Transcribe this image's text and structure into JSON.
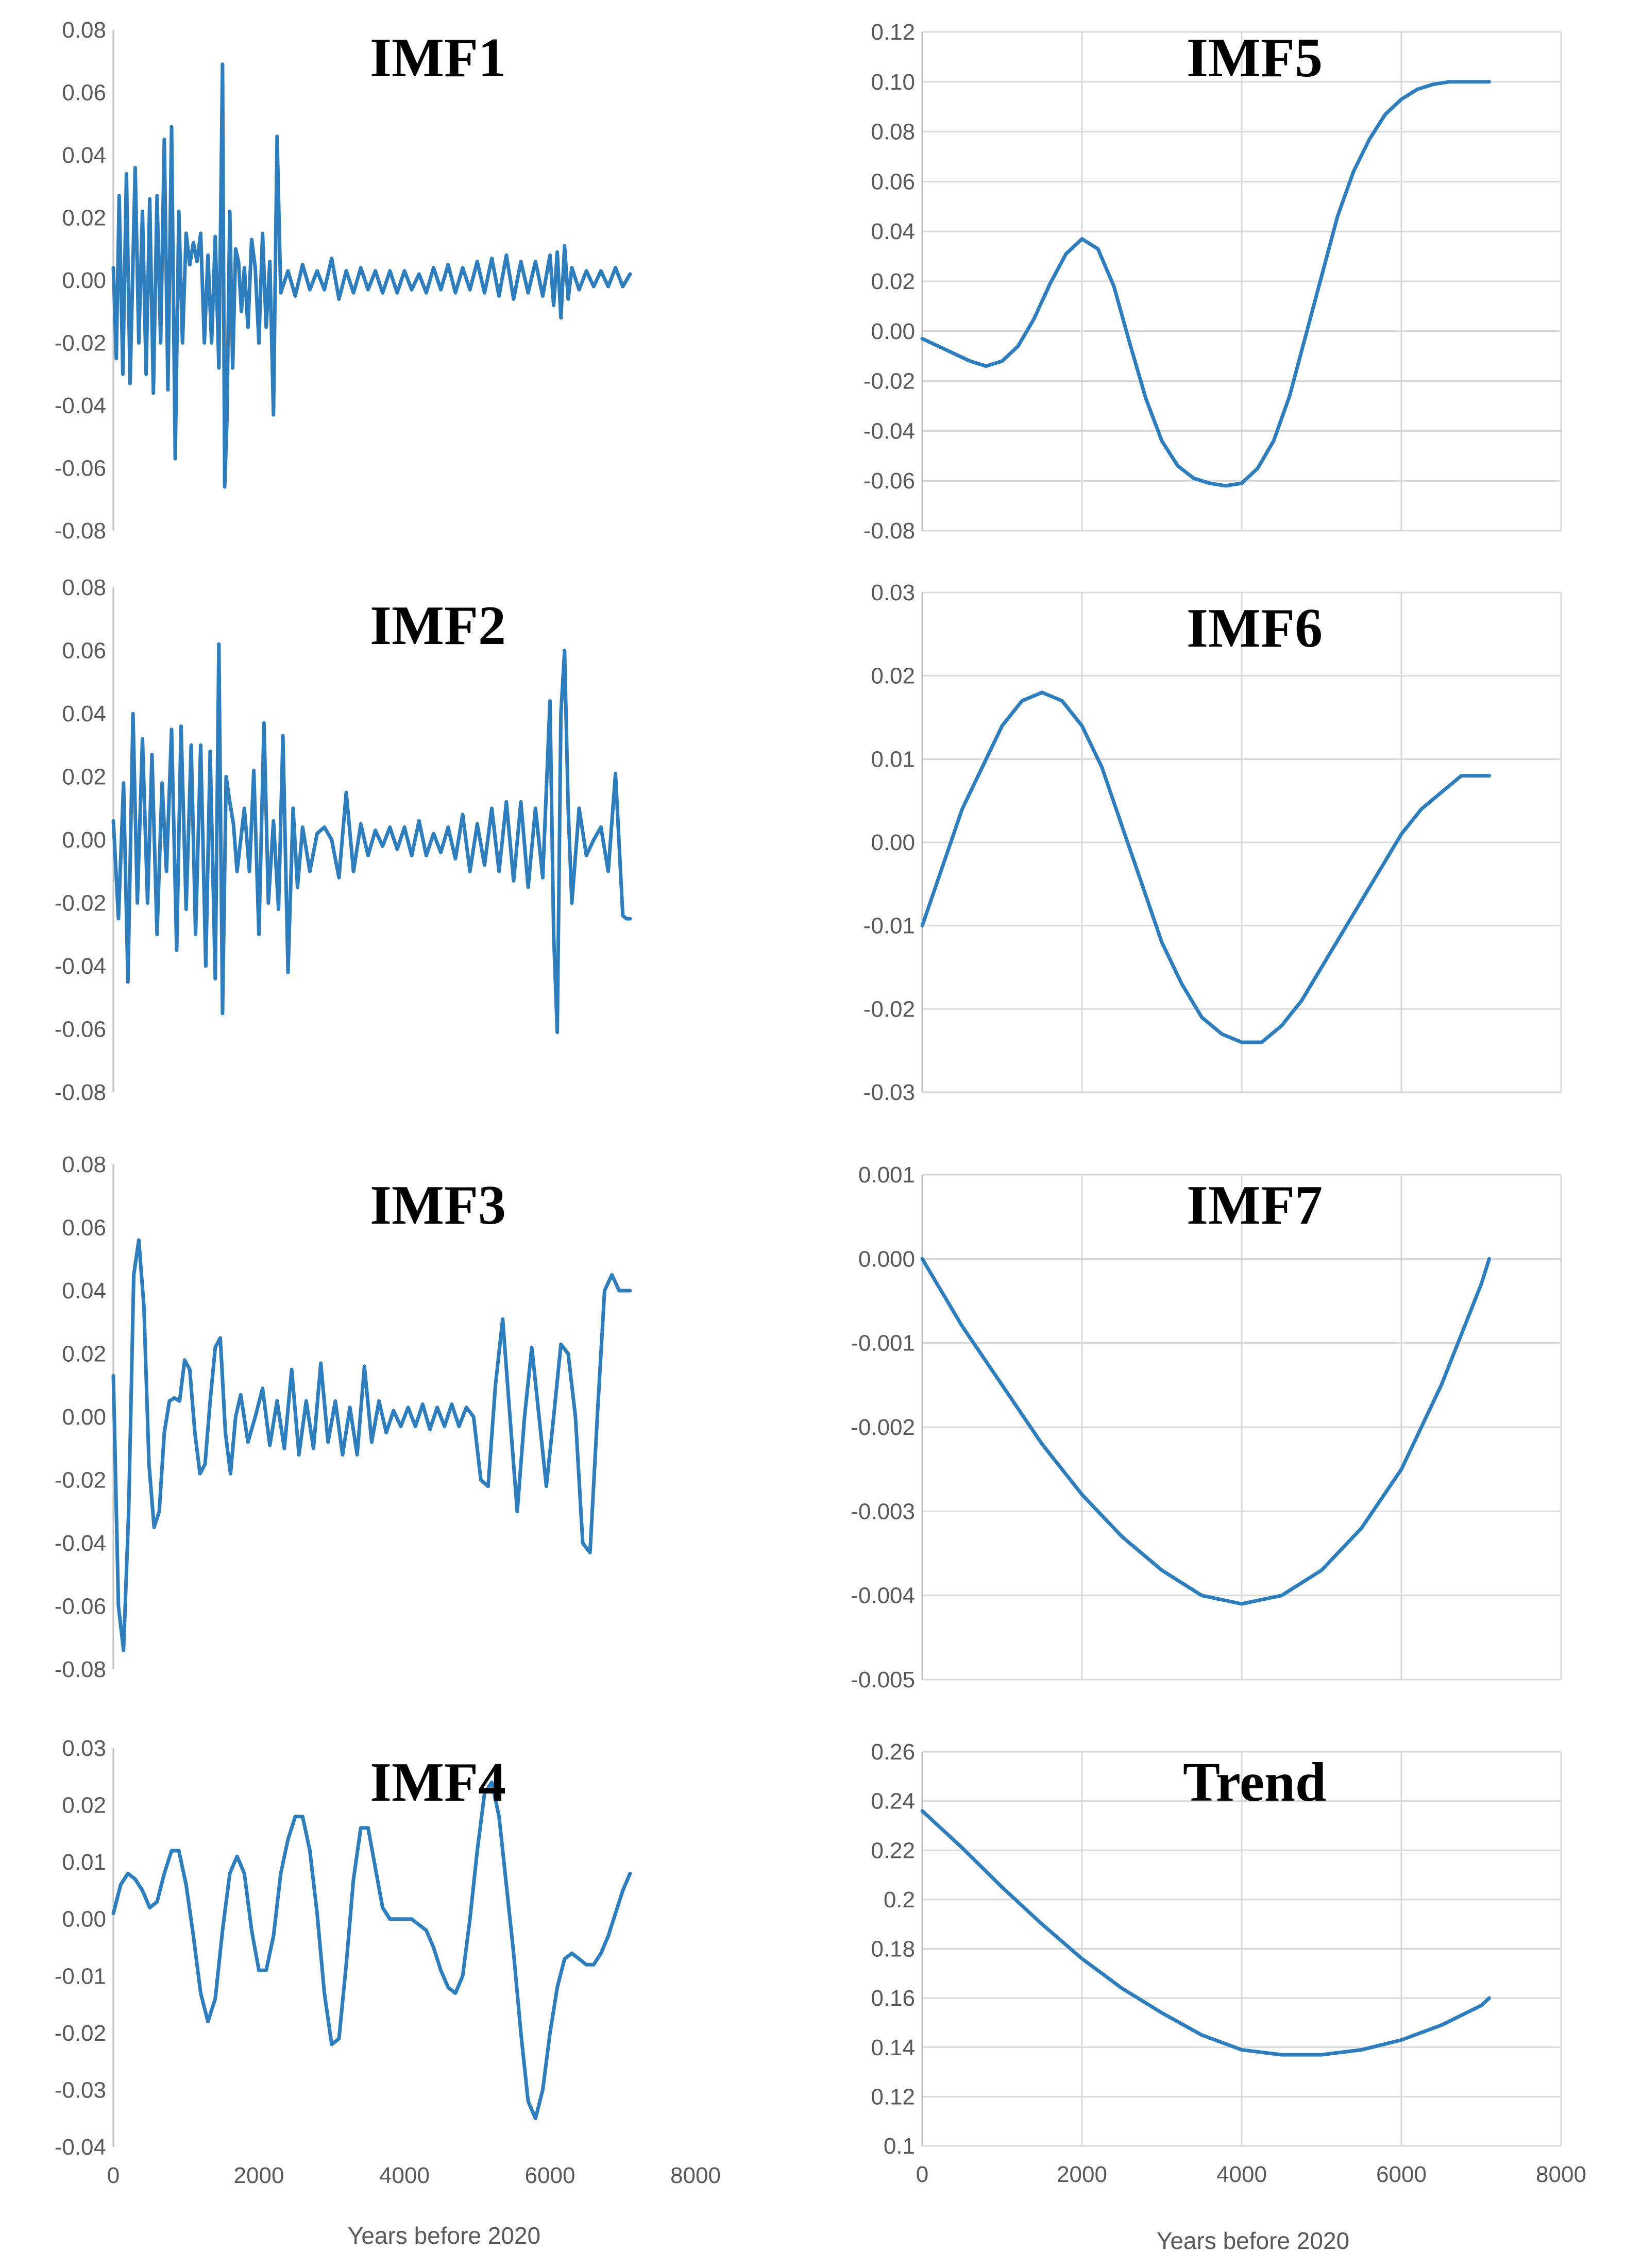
{
  "style": {
    "line_color": "#2e7ebe",
    "grid_color": "#d9d9d9"
  },
  "xlabel": "Years before 2020",
  "chart_data": [
    {
      "id": "imf1",
      "type": "line",
      "title": "IMF1",
      "ylim": [
        -0.08,
        0.08
      ],
      "yticks": [
        "0.08",
        "0.06",
        "0.04",
        "0.02",
        "0.00",
        "-0.02",
        "-0.04",
        "-0.06",
        "-0.08"
      ],
      "grid": false,
      "show_xticks": false,
      "x": [
        0,
        40,
        80,
        130,
        180,
        230,
        300,
        350,
        400,
        450,
        500,
        550,
        600,
        650,
        700,
        750,
        800,
        850,
        900,
        950,
        1000,
        1050,
        1100,
        1150,
        1200,
        1250,
        1300,
        1350,
        1400,
        1450,
        1500,
        1530,
        1560,
        1600,
        1640,
        1680,
        1720,
        1760,
        1800,
        1850,
        1900,
        1950,
        2000,
        2050,
        2100,
        2150,
        2200,
        2250,
        2300,
        2400,
        2500,
        2600,
        2700,
        2800,
        2900,
        3000,
        3100,
        3200,
        3300,
        3400,
        3500,
        3600,
        3700,
        3800,
        3900,
        4000,
        4100,
        4200,
        4300,
        4400,
        4500,
        4600,
        4700,
        4800,
        4900,
        5000,
        5100,
        5200,
        5300,
        5400,
        5500,
        5600,
        5700,
        5800,
        5900,
        6000,
        6050,
        6100,
        6150,
        6200,
        6250,
        6300,
        6400,
        6500,
        6600,
        6700,
        6800,
        6900,
        7000,
        7100
      ],
      "y": [
        0.004,
        -0.025,
        0.027,
        -0.03,
        0.034,
        -0.033,
        0.036,
        -0.02,
        0.022,
        -0.03,
        0.026,
        -0.036,
        0.027,
        -0.02,
        0.045,
        -0.035,
        0.049,
        -0.057,
        0.022,
        -0.02,
        0.015,
        0.005,
        0.012,
        0.006,
        0.015,
        -0.02,
        0.008,
        -0.02,
        0.014,
        -0.028,
        0.069,
        -0.066,
        -0.045,
        0.022,
        -0.028,
        0.01,
        0.006,
        -0.01,
        0.004,
        -0.015,
        0.013,
        0.004,
        -0.02,
        0.015,
        -0.015,
        0.006,
        -0.043,
        0.046,
        -0.004,
        0.003,
        -0.005,
        0.005,
        -0.003,
        0.003,
        -0.003,
        0.007,
        -0.006,
        0.003,
        -0.004,
        0.004,
        -0.003,
        0.003,
        -0.004,
        0.003,
        -0.004,
        0.003,
        -0.003,
        0.002,
        -0.004,
        0.004,
        -0.003,
        0.005,
        -0.004,
        0.004,
        -0.003,
        0.006,
        -0.004,
        0.007,
        -0.005,
        0.008,
        -0.006,
        0.006,
        -0.004,
        0.006,
        -0.005,
        0.008,
        -0.008,
        0.009,
        -0.012,
        0.011,
        -0.006,
        0.004,
        -0.003,
        0.003,
        -0.002,
        0.003,
        -0.002,
        0.004,
        -0.002,
        0.002
      ]
    },
    {
      "id": "imf2",
      "type": "line",
      "title": "IMF2",
      "ylim": [
        -0.08,
        0.08
      ],
      "yticks": [
        "0.08",
        "0.06",
        "0.04",
        "0.02",
        "0.00",
        "-0.02",
        "-0.04",
        "-0.06",
        "-0.08"
      ],
      "grid": false,
      "show_xticks": false,
      "x": [
        0,
        70,
        140,
        200,
        270,
        330,
        400,
        470,
        530,
        600,
        670,
        730,
        800,
        870,
        930,
        1000,
        1070,
        1130,
        1200,
        1270,
        1330,
        1400,
        1450,
        1500,
        1550,
        1600,
        1650,
        1700,
        1800,
        1870,
        1930,
        2000,
        2070,
        2130,
        2200,
        2270,
        2330,
        2400,
        2470,
        2530,
        2600,
        2700,
        2800,
        2900,
        3000,
        3100,
        3200,
        3300,
        3400,
        3500,
        3600,
        3700,
        3800,
        3900,
        4000,
        4100,
        4200,
        4300,
        4400,
        4500,
        4600,
        4700,
        4800,
        4900,
        5000,
        5100,
        5200,
        5300,
        5400,
        5500,
        5600,
        5700,
        5800,
        5900,
        6000,
        6050,
        6100,
        6150,
        6200,
        6250,
        6300,
        6400,
        6500,
        6600,
        6700,
        6800,
        6900,
        7000,
        7050,
        7100
      ],
      "y": [
        0.006,
        -0.025,
        0.018,
        -0.045,
        0.04,
        -0.02,
        0.032,
        -0.02,
        0.027,
        -0.03,
        0.018,
        -0.01,
        0.035,
        -0.035,
        0.036,
        -0.022,
        0.03,
        -0.03,
        0.03,
        -0.04,
        0.028,
        -0.044,
        0.062,
        -0.055,
        0.02,
        0.012,
        0.005,
        -0.01,
        0.01,
        -0.01,
        0.022,
        -0.03,
        0.037,
        -0.02,
        0.006,
        -0.022,
        0.033,
        -0.042,
        0.01,
        -0.015,
        0.004,
        -0.01,
        0.002,
        0.004,
        0.0,
        -0.012,
        0.015,
        -0.01,
        0.005,
        -0.005,
        0.003,
        -0.002,
        0.004,
        -0.003,
        0.004,
        -0.005,
        0.006,
        -0.005,
        0.002,
        -0.004,
        0.004,
        -0.006,
        0.008,
        -0.01,
        0.005,
        -0.008,
        0.01,
        -0.01,
        0.012,
        -0.013,
        0.012,
        -0.015,
        0.01,
        -0.012,
        0.044,
        -0.03,
        -0.061,
        0.04,
        0.06,
        0.01,
        -0.02,
        0.01,
        -0.005,
        0.0,
        0.004,
        -0.01,
        0.021,
        -0.024,
        -0.025,
        -0.025
      ]
    },
    {
      "id": "imf3",
      "type": "line",
      "title": "IMF3",
      "ylim": [
        -0.08,
        0.08
      ],
      "yticks": [
        "0.08",
        "0.06",
        "0.04",
        "0.02",
        "0.00",
        "-0.02",
        "-0.04",
        "-0.06",
        "-0.08"
      ],
      "grid": false,
      "show_xticks": false,
      "x": [
        0,
        70,
        140,
        210,
        280,
        350,
        420,
        490,
        560,
        630,
        700,
        770,
        840,
        910,
        980,
        1050,
        1120,
        1190,
        1260,
        1330,
        1400,
        1470,
        1540,
        1610,
        1680,
        1750,
        1850,
        1950,
        2050,
        2150,
        2250,
        2350,
        2450,
        2550,
        2650,
        2750,
        2850,
        2950,
        3050,
        3150,
        3250,
        3350,
        3450,
        3550,
        3650,
        3750,
        3850,
        3950,
        4050,
        4150,
        4250,
        4350,
        4450,
        4550,
        4650,
        4750,
        4850,
        4950,
        5050,
        5150,
        5250,
        5350,
        5450,
        5550,
        5650,
        5750,
        5850,
        5950,
        6050,
        6150,
        6250,
        6350,
        6450,
        6550,
        6650,
        6750,
        6850,
        6950,
        7050,
        7100
      ],
      "y": [
        0.013,
        -0.06,
        -0.074,
        -0.03,
        0.045,
        0.056,
        0.035,
        -0.015,
        -0.035,
        -0.03,
        -0.005,
        0.005,
        0.006,
        0.005,
        0.018,
        0.015,
        -0.005,
        -0.018,
        -0.015,
        0.005,
        0.022,
        0.025,
        -0.005,
        -0.018,
        0.0,
        0.007,
        -0.008,
        0.0,
        0.009,
        -0.009,
        0.005,
        -0.01,
        0.015,
        -0.012,
        0.005,
        -0.01,
        0.017,
        -0.008,
        0.005,
        -0.012,
        0.003,
        -0.012,
        0.016,
        -0.008,
        0.005,
        -0.005,
        0.002,
        -0.003,
        0.003,
        -0.003,
        0.004,
        -0.004,
        0.003,
        -0.003,
        0.004,
        -0.003,
        0.003,
        0.0,
        -0.02,
        -0.022,
        0.01,
        0.031,
        0.0,
        -0.03,
        0.0,
        0.022,
        0.0,
        -0.022,
        0.0,
        0.023,
        0.02,
        0.0,
        -0.04,
        -0.043,
        0.0,
        0.04,
        0.045,
        0.04,
        0.04,
        0.04
      ]
    },
    {
      "id": "imf4",
      "type": "line",
      "title": "IMF4",
      "ylim": [
        -0.04,
        0.03
      ],
      "yticks": [
        "0.03",
        "0.02",
        "0.01",
        "0.00",
        "-0.01",
        "-0.02",
        "-0.03",
        "-0.04"
      ],
      "grid": false,
      "show_xticks": true,
      "xticks": [
        "0",
        "2000",
        "4000",
        "6000",
        "8000"
      ],
      "xlim": [
        0,
        8000
      ],
      "x": [
        0,
        100,
        200,
        300,
        400,
        500,
        600,
        700,
        800,
        900,
        1000,
        1100,
        1200,
        1300,
        1400,
        1500,
        1600,
        1700,
        1800,
        1900,
        2000,
        2100,
        2200,
        2300,
        2400,
        2500,
        2600,
        2700,
        2800,
        2900,
        3000,
        3100,
        3200,
        3300,
        3400,
        3500,
        3600,
        3700,
        3800,
        3900,
        4000,
        4100,
        4200,
        4300,
        4400,
        4500,
        4600,
        4700,
        4800,
        4900,
        5000,
        5100,
        5200,
        5300,
        5400,
        5500,
        5600,
        5700,
        5800,
        5900,
        6000,
        6100,
        6200,
        6300,
        6400,
        6500,
        6600,
        6700,
        6800,
        6900,
        7000,
        7100
      ],
      "y": [
        0.001,
        0.006,
        0.008,
        0.007,
        0.005,
        0.002,
        0.003,
        0.008,
        0.012,
        0.012,
        0.006,
        -0.003,
        -0.013,
        -0.018,
        -0.014,
        -0.002,
        0.008,
        0.011,
        0.008,
        -0.002,
        -0.009,
        -0.009,
        -0.003,
        0.008,
        0.014,
        0.018,
        0.018,
        0.012,
        0.001,
        -0.013,
        -0.022,
        -0.021,
        -0.008,
        0.007,
        0.016,
        0.016,
        0.009,
        0.002,
        0.0,
        0.0,
        0.0,
        0.0,
        -0.001,
        -0.002,
        -0.005,
        -0.009,
        -0.012,
        -0.013,
        -0.01,
        0.0,
        0.012,
        0.022,
        0.024,
        0.018,
        0.006,
        -0.006,
        -0.02,
        -0.032,
        -0.035,
        -0.03,
        -0.02,
        -0.012,
        -0.007,
        -0.006,
        -0.007,
        -0.008,
        -0.008,
        -0.006,
        -0.003,
        0.001,
        0.005,
        0.008
      ]
    },
    {
      "id": "imf5",
      "type": "line",
      "title": "IMF5",
      "ylim": [
        -0.08,
        0.12
      ],
      "yticks": [
        "0.12",
        "0.10",
        "0.08",
        "0.06",
        "0.04",
        "0.02",
        "0.00",
        "-0.02",
        "-0.04",
        "-0.06",
        "-0.08"
      ],
      "grid": true,
      "show_xticks": false,
      "x": [
        0,
        200,
        400,
        600,
        800,
        1000,
        1200,
        1400,
        1600,
        1800,
        2000,
        2200,
        2400,
        2600,
        2800,
        3000,
        3200,
        3400,
        3600,
        3800,
        4000,
        4200,
        4400,
        4600,
        4800,
        5000,
        5200,
        5400,
        5600,
        5800,
        6000,
        6200,
        6400,
        6600,
        6800,
        7000,
        7100
      ],
      "y": [
        -0.003,
        -0.006,
        -0.009,
        -0.012,
        -0.014,
        -0.012,
        -0.006,
        0.005,
        0.019,
        0.031,
        0.037,
        0.033,
        0.018,
        -0.005,
        -0.027,
        -0.044,
        -0.054,
        -0.059,
        -0.061,
        -0.062,
        -0.061,
        -0.055,
        -0.044,
        -0.026,
        -0.002,
        0.022,
        0.046,
        0.064,
        0.077,
        0.087,
        0.093,
        0.097,
        0.099,
        0.1,
        0.1,
        0.1,
        0.1
      ]
    },
    {
      "id": "imf6",
      "type": "line",
      "title": "IMF6",
      "ylim": [
        -0.03,
        0.03
      ],
      "yticks": [
        "0.03",
        "0.02",
        "0.01",
        "0.00",
        "-0.01",
        "-0.02",
        "-0.03"
      ],
      "grid": true,
      "show_xticks": false,
      "x": [
        0,
        250,
        500,
        750,
        1000,
        1250,
        1500,
        1750,
        2000,
        2250,
        2500,
        2750,
        3000,
        3250,
        3500,
        3750,
        4000,
        4250,
        4500,
        4750,
        5000,
        5250,
        5500,
        5750,
        6000,
        6250,
        6500,
        6750,
        7000,
        7100
      ],
      "y": [
        -0.01,
        -0.003,
        0.004,
        0.009,
        0.014,
        0.017,
        0.018,
        0.017,
        0.014,
        0.009,
        0.002,
        -0.005,
        -0.012,
        -0.017,
        -0.021,
        -0.023,
        -0.024,
        -0.024,
        -0.022,
        -0.019,
        -0.015,
        -0.011,
        -0.007,
        -0.003,
        0.001,
        0.004,
        0.006,
        0.008,
        0.008,
        0.008
      ]
    },
    {
      "id": "imf7",
      "type": "line",
      "title": "IMF7",
      "ylim": [
        -0.005,
        0.001
      ],
      "yticks": [
        "0.001",
        "0.000",
        "-0.001",
        "-0.002",
        "-0.003",
        "-0.004",
        "-0.005"
      ],
      "grid": true,
      "show_xticks": false,
      "x": [
        0,
        500,
        1000,
        1500,
        2000,
        2500,
        3000,
        3500,
        4000,
        4500,
        5000,
        5500,
        6000,
        6500,
        7000,
        7100
      ],
      "y": [
        0.0,
        -0.0008,
        -0.0015,
        -0.0022,
        -0.0028,
        -0.0033,
        -0.0037,
        -0.004,
        -0.0041,
        -0.004,
        -0.0037,
        -0.0032,
        -0.0025,
        -0.0015,
        -0.0003,
        0.0
      ]
    },
    {
      "id": "trend",
      "type": "line",
      "title": "Trend",
      "ylim": [
        0.1,
        0.26
      ],
      "yticks": [
        "0.26",
        "0.24",
        "0.22",
        "0.2",
        "0.18",
        "0.16",
        "0.14",
        "0.12",
        "0.1"
      ],
      "grid": true,
      "show_xticks": true,
      "xticks": [
        "0",
        "2000",
        "4000",
        "6000",
        "8000"
      ],
      "xlim": [
        0,
        8000
      ],
      "x": [
        0,
        500,
        1000,
        1500,
        2000,
        2500,
        3000,
        3500,
        4000,
        4500,
        5000,
        5500,
        6000,
        6500,
        7000,
        7100
      ],
      "y": [
        0.236,
        0.221,
        0.205,
        0.19,
        0.176,
        0.164,
        0.154,
        0.145,
        0.139,
        0.137,
        0.137,
        0.139,
        0.143,
        0.149,
        0.157,
        0.16
      ]
    }
  ]
}
